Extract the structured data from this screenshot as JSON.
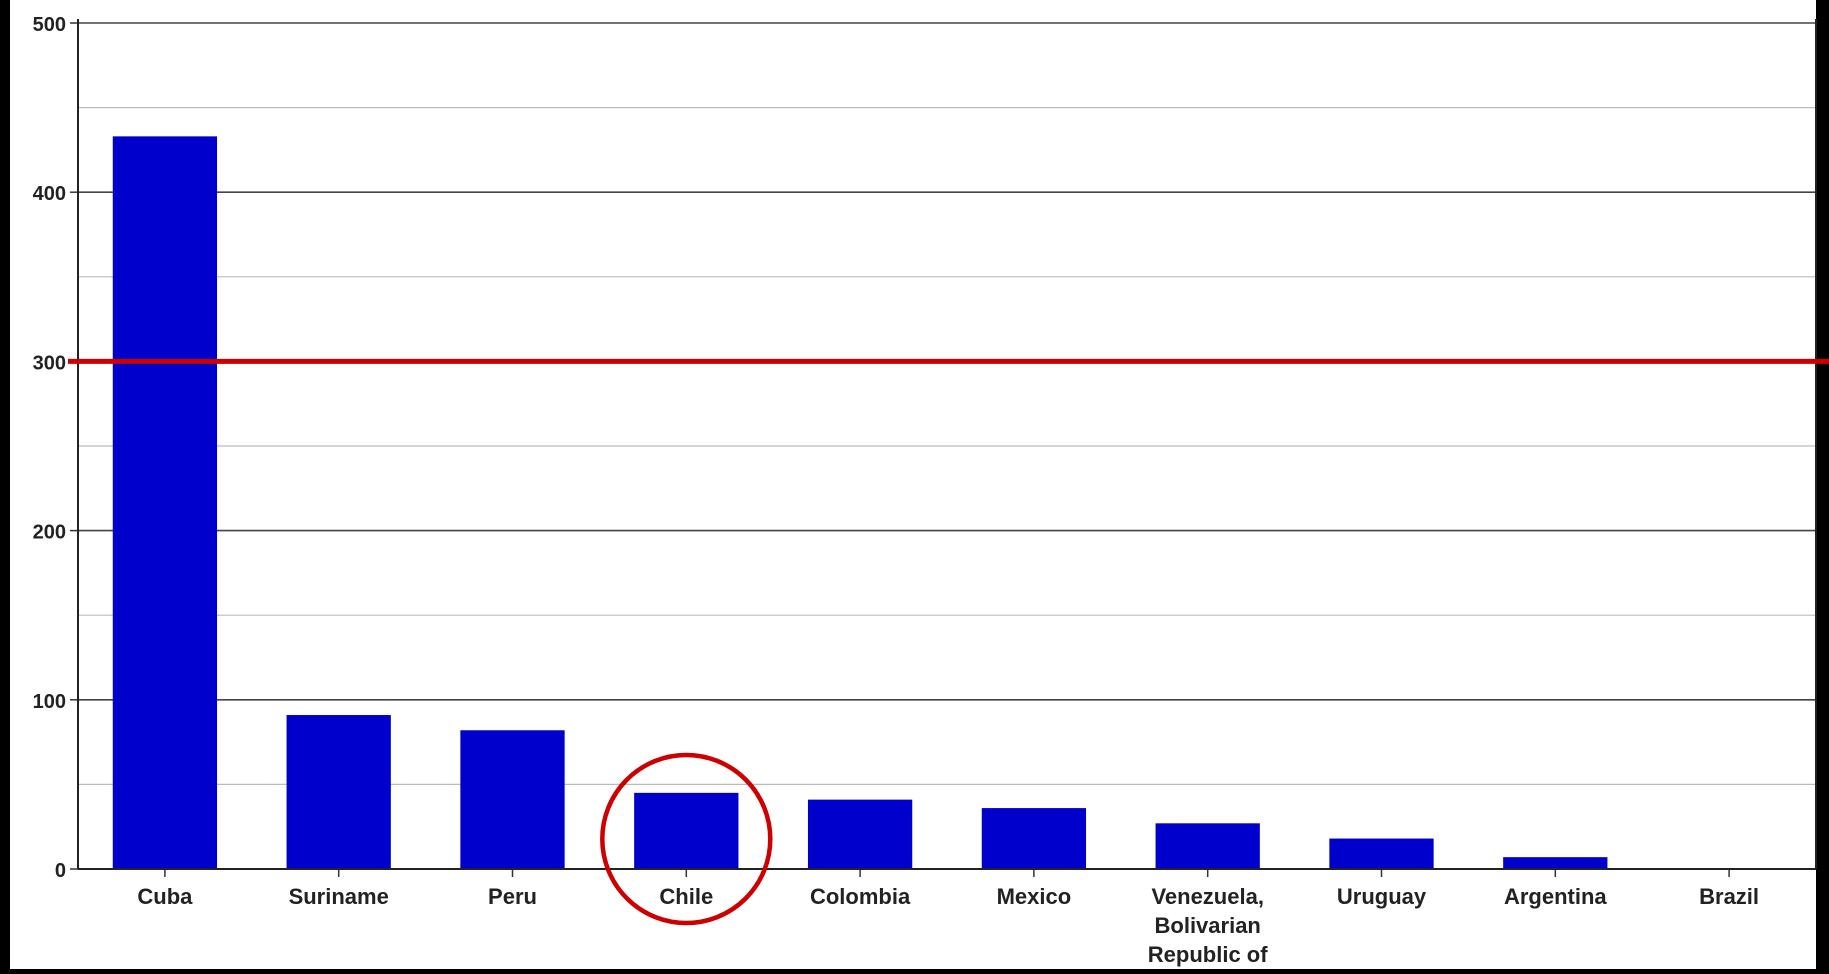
{
  "chart_data": {
    "type": "bar",
    "categories": [
      "Cuba",
      "Suriname",
      "Peru",
      "Chile",
      "Colombia",
      "Mexico",
      "Venezuela, Bolivarian Republic of",
      "Uruguay",
      "Argentina",
      "Brazil"
    ],
    "values": [
      433,
      91,
      82,
      45,
      41,
      36,
      27,
      18,
      7,
      0
    ],
    "title": "",
    "xlabel": "",
    "ylabel": "",
    "ylim": [
      0,
      500
    ],
    "yticks": [
      0,
      100,
      200,
      300,
      400,
      500
    ],
    "grid": true,
    "legend": "none",
    "bar_color": "#0000CC",
    "reference_line": {
      "value": 300,
      "color": "#CC0000"
    },
    "highlight": {
      "category": "Chile",
      "shape": "circle",
      "color": "#CC0000"
    }
  }
}
